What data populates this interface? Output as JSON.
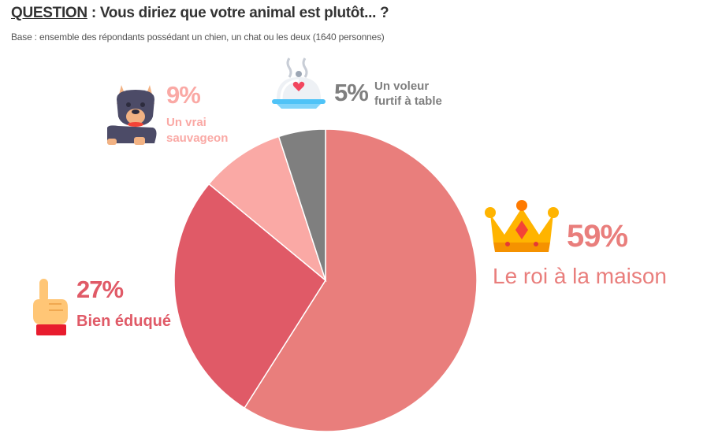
{
  "header": {
    "question_label": "QUESTION",
    "question_sep": " : ",
    "question_text": "Vous diriez que votre animal est plutôt... ?",
    "base": "Base : ensemble des répondants possédant un chien, un chat ou les deux (1640 personnes)"
  },
  "chart_data": {
    "type": "pie",
    "title": "",
    "start_angle_deg": 0,
    "direction": "clockwise",
    "slices": [
      {
        "label": "Le roi à la maison",
        "value": 59,
        "pct_label": "59%",
        "color": "#E97E7C",
        "icon": "crown-icon"
      },
      {
        "label": "Bien éduqué",
        "value": 27,
        "pct_label": "27%",
        "color": "#E05A67",
        "icon": "hand-pointing-icon"
      },
      {
        "label": "Un vrai sauvageon",
        "value": 9,
        "pct_label": "9%",
        "color": "#FAA9A5",
        "icon": "dog-icon"
      },
      {
        "label": "Un voleur furtif à table",
        "value": 5,
        "pct_label": "5%",
        "color": "#7F7F7F",
        "icon": "serving-dish-icon"
      }
    ]
  },
  "labels": {
    "king_pct": "59%",
    "king_text": "Le roi à la maison",
    "edu_pct": "27%",
    "edu_text": "Bien éduqué",
    "wild_pct": "9%",
    "wild_line1": "Un vrai",
    "wild_line2": "sauvageon",
    "thief_pct": "5%",
    "thief_line1": "Un voleur",
    "thief_line2": "furtif à table"
  },
  "colors": {
    "king": "#E97E7C",
    "edu": "#E05A67",
    "wild": "#FAA9A5",
    "thief": "#7F7F7F"
  }
}
